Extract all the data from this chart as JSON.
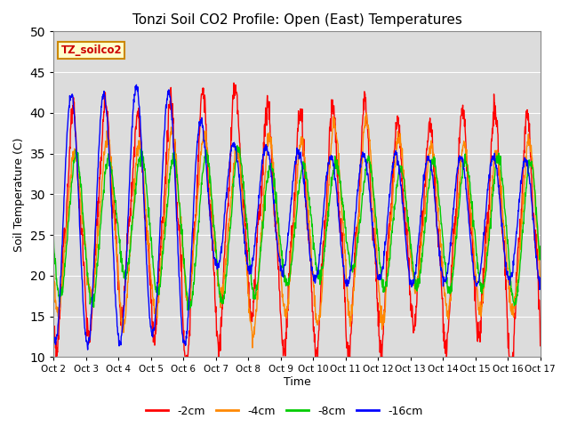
{
  "title": "Tonzi Soil CO2 Profile: Open (East) Temperatures",
  "xlabel": "Time",
  "ylabel": "Soil Temperature (C)",
  "ylim": [
    10,
    50
  ],
  "background_color": "#dcdcdc",
  "plot_bg_color": "#dcdcdc",
  "grid_color": "white",
  "colors": {
    "-2cm": "#ff0000",
    "-4cm": "#ff8800",
    "-8cm": "#00cc00",
    "-16cm": "#0000ff"
  },
  "xtick_labels": [
    "Oct 2",
    "Oct 3",
    "Oct 4",
    "Oct 5",
    "Oct 6",
    "Oct 7",
    "Oct 8",
    "Oct 9",
    "Oct 10",
    "Oct 11",
    "Oct 12",
    "Oct 13",
    "Oct 14",
    "Oct 15",
    "Oct 16",
    "Oct 17"
  ],
  "legend_label": "TZ_soilco2",
  "legend_bg": "#ffffcc",
  "legend_edge": "#cc8800",
  "n_days": 15,
  "pts_per_day": 96
}
